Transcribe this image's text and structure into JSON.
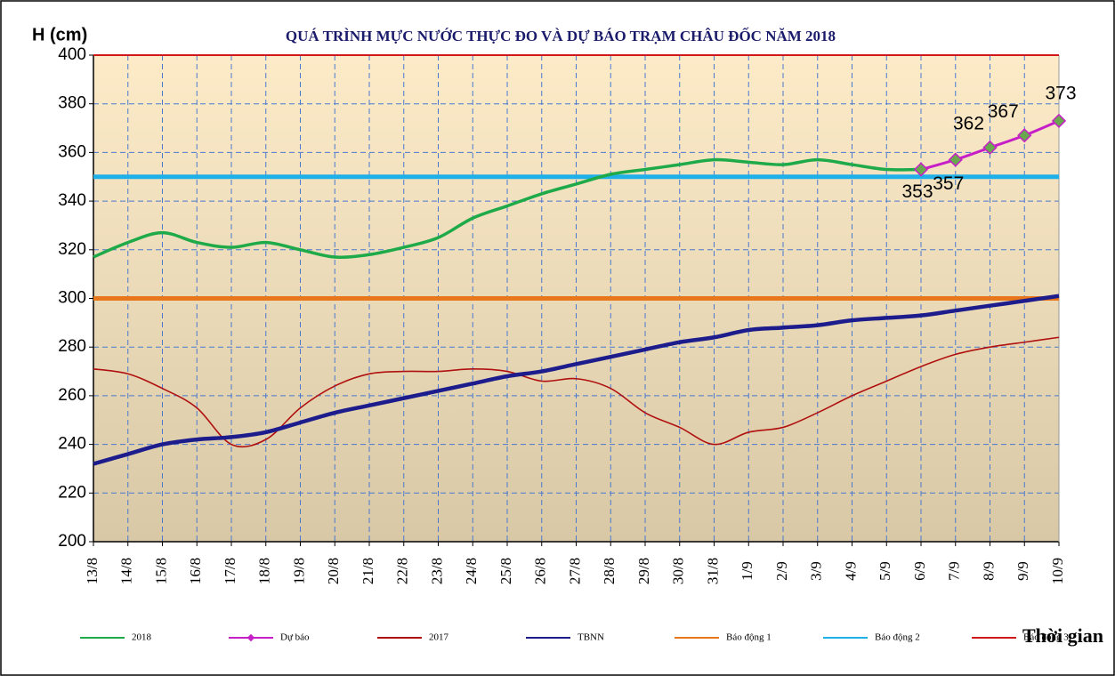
{
  "chart_data": {
    "type": "line",
    "title": "QUÁ TRÌNH MỰC NƯỚC THỰC ĐO VÀ DỰ BÁO TRẠM CHÂU ĐỐC NĂM 2018",
    "y_label": "H (cm)",
    "x_label": "Thời gian",
    "categories": [
      "13/8",
      "14/8",
      "15/8",
      "16/8",
      "17/8",
      "18/8",
      "19/8",
      "20/8",
      "21/8",
      "22/8",
      "23/8",
      "24/8",
      "25/8",
      "26/8",
      "27/8",
      "28/8",
      "29/8",
      "30/8",
      "31/8",
      "1/9",
      "2/9",
      "3/9",
      "4/9",
      "5/9",
      "6/9",
      "7/9",
      "8/9",
      "9/9",
      "10/9"
    ],
    "ylim": [
      200,
      400
    ],
    "yticks": [
      200,
      220,
      240,
      260,
      280,
      300,
      320,
      340,
      360,
      380,
      400
    ],
    "grid": true,
    "series": [
      {
        "name": "2018",
        "color": "#1faa4a",
        "values": [
          317,
          323,
          327,
          323,
          321,
          323,
          320,
          317,
          318,
          321,
          325,
          333,
          338,
          343,
          347,
          351,
          353,
          355,
          357,
          356,
          355,
          357,
          355,
          353,
          353,
          null,
          null,
          null,
          null
        ]
      },
      {
        "name": "Dự báo",
        "color": "#c71fc7",
        "markers": true,
        "data_labels": true,
        "values": [
          null,
          null,
          null,
          null,
          null,
          null,
          null,
          null,
          null,
          null,
          null,
          null,
          null,
          null,
          null,
          null,
          null,
          null,
          null,
          null,
          null,
          null,
          null,
          null,
          353,
          357,
          362,
          367,
          373
        ]
      },
      {
        "name": "2017",
        "color": "#b01010",
        "values": [
          271,
          269,
          263,
          255,
          240,
          242,
          255,
          264,
          269,
          270,
          270,
          271,
          270,
          266,
          267,
          263,
          253,
          247,
          240,
          245,
          247,
          253,
          260,
          266,
          272,
          277,
          280,
          282,
          284
        ]
      },
      {
        "name": "TBNN",
        "color": "#1c1c8c",
        "values": [
          232,
          236,
          240,
          242,
          243,
          245,
          249,
          253,
          256,
          259,
          262,
          265,
          268,
          270,
          273,
          276,
          279,
          282,
          284,
          287,
          288,
          289,
          291,
          292,
          293,
          295,
          297,
          299,
          301
        ]
      }
    ],
    "alert_lines": [
      {
        "name": "Báo động 1",
        "color": "#e8761a",
        "value": 300
      },
      {
        "name": "Báo động 2",
        "color": "#1fb0ea",
        "value": 350
      },
      {
        "name": "Báo động 3",
        "color": "#d01818",
        "value": 400
      }
    ]
  }
}
